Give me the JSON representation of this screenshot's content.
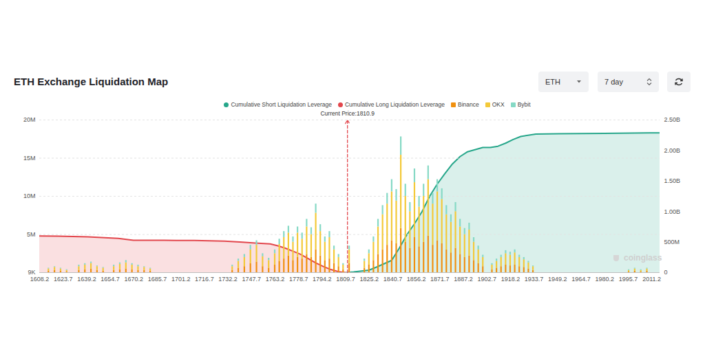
{
  "chart_data": {
    "type": "bar",
    "title": "ETH Exchange Liquidation Map",
    "stacked": true,
    "grid": true,
    "xlim": [
      1608.2,
      2016.6
    ],
    "xticks": [
      1608.2,
      1623.7,
      1639.2,
      1654.7,
      1670.2,
      1685.7,
      1701.2,
      1716.7,
      1732.2,
      1747.7,
      1763.2,
      1778.7,
      1794.2,
      1809.7,
      1825.2,
      1840.7,
      1856.2,
      1871.7,
      1887.2,
      1902.7,
      1918.2,
      1933.7,
      1949.2,
      1964.7,
      1980.2,
      1995.7,
      2011.2
    ],
    "ylim": [
      9000,
      20000000
    ],
    "yticks": [
      {
        "value": 9000,
        "label": "9K"
      },
      {
        "value": 5000000,
        "label": "5M"
      },
      {
        "value": 10000000,
        "label": "10M"
      },
      {
        "value": 15000000,
        "label": "15M"
      },
      {
        "value": 20000000,
        "label": "20M"
      }
    ],
    "y2lim": [
      0,
      2500000000
    ],
    "y2ticks": [
      0,
      {
        "value": 500000000,
        "label": "500M"
      },
      {
        "value": 1000000000,
        "label": "1.00B"
      },
      {
        "value": 1500000000,
        "label": "1.50B"
      },
      {
        "value": 2000000000,
        "label": "2.00B"
      },
      {
        "value": 2500000000,
        "label": "2.50B"
      }
    ],
    "x": [
      1614,
      1618,
      1622,
      1626,
      1634,
      1638,
      1642,
      1646,
      1650,
      1657,
      1661,
      1665,
      1669,
      1673,
      1677,
      1681,
      1735,
      1739,
      1743,
      1747,
      1751,
      1755,
      1759,
      1763,
      1766,
      1769,
      1772,
      1775,
      1778,
      1781,
      1784,
      1787,
      1790,
      1793,
      1796,
      1799,
      1802,
      1805,
      1808,
      1812,
      1822,
      1825,
      1828,
      1831,
      1834,
      1837,
      1840,
      1843,
      1846,
      1849,
      1852,
      1855,
      1858,
      1861,
      1864,
      1867,
      1870,
      1873,
      1876,
      1879,
      1882,
      1885,
      1888,
      1891,
      1894,
      1897,
      1900,
      1906,
      1909,
      1912,
      1915,
      1918,
      1921,
      1924,
      1927,
      1930,
      1933,
      1996,
      2000,
      2004,
      2008
    ],
    "series": [
      {
        "name": "Cumulative Short Liquidation Leverage",
        "color": "#26a68a",
        "type": "area",
        "axis": "y2",
        "x": [
          1810,
          1815,
          1825,
          1830,
          1840,
          1845,
          1850,
          1855,
          1860,
          1865,
          1870,
          1875,
          1880,
          1885,
          1890,
          1900,
          1905,
          1910,
          1915,
          1920,
          1925,
          1935,
          1950,
          1980,
          2010,
          2016.6
        ],
        "values": [
          0,
          10000000,
          40000000,
          90000000,
          200000000,
          400000000,
          620000000,
          800000000,
          1000000000,
          1250000000,
          1450000000,
          1620000000,
          1780000000,
          1900000000,
          1980000000,
          2050000000,
          2050000000,
          2070000000,
          2120000000,
          2180000000,
          2230000000,
          2270000000,
          2275000000,
          2280000000,
          2290000000,
          2290000000
        ]
      },
      {
        "name": "Cumulative Long Liquidation Leverage",
        "color": "#e2464c",
        "type": "area",
        "axis": "y2",
        "x": [
          1608.2,
          1620,
          1640,
          1660,
          1670,
          1690,
          1710,
          1730,
          1740,
          1750,
          1760,
          1765,
          1770,
          1775,
          1780,
          1785,
          1790,
          1795,
          1800,
          1805,
          1809.7
        ],
        "values": [
          600000000,
          598000000,
          585000000,
          560000000,
          530000000,
          528000000,
          526000000,
          515000000,
          500000000,
          485000000,
          470000000,
          440000000,
          400000000,
          350000000,
          300000000,
          230000000,
          160000000,
          100000000,
          50000000,
          15000000,
          0
        ]
      },
      {
        "name": "Binance",
        "color": "#f0900f",
        "values": [
          200000,
          300000,
          200000,
          100000,
          300000,
          400000,
          500000,
          300000,
          200000,
          300000,
          400000,
          500000,
          400000,
          300000,
          300000,
          200000,
          300000,
          600000,
          800000,
          1200000,
          1400000,
          800000,
          600000,
          1000000,
          1500000,
          1800000,
          2200000,
          1600000,
          2000000,
          1800000,
          2400000,
          2000000,
          3000000,
          2200000,
          1600000,
          1800000,
          1200000,
          800000,
          400000,
          1200000,
          600000,
          1000000,
          1600000,
          2400000,
          3000000,
          3600000,
          4200000,
          3800000,
          5800000,
          4000000,
          3200000,
          4600000,
          3400000,
          4000000,
          4800000,
          3600000,
          4200000,
          3800000,
          3000000,
          2600000,
          3200000,
          2400000,
          2000000,
          2200000,
          1600000,
          1200000,
          800000,
          400000,
          600000,
          800000,
          1000000,
          900000,
          1000000,
          800000,
          700000,
          500000,
          300000,
          100000,
          200000,
          100000,
          200000
        ]
      },
      {
        "name": "OKX",
        "color": "#f3c939",
        "values": [
          300000,
          400000,
          300000,
          200000,
          500000,
          600000,
          700000,
          500000,
          400000,
          500000,
          700000,
          800000,
          600000,
          500000,
          400000,
          300000,
          500000,
          900000,
          1200000,
          1800000,
          2200000,
          1300000,
          1000000,
          1500000,
          2200000,
          2800000,
          3000000,
          2400000,
          3200000,
          2600000,
          3600000,
          3000000,
          4800000,
          3200000,
          2400000,
          2800000,
          1800000,
          1200000,
          600000,
          1800000,
          900000,
          1500000,
          2400000,
          3600000,
          4600000,
          5400000,
          6400000,
          5600000,
          9600000,
          6000000,
          4800000,
          7200000,
          5200000,
          6000000,
          7400000,
          5400000,
          6400000,
          5800000,
          4600000,
          4000000,
          4800000,
          3600000,
          3000000,
          3400000,
          2400000,
          1800000,
          1200000,
          600000,
          900000,
          1200000,
          1500000,
          1400000,
          1600000,
          1200000,
          1000000,
          800000,
          500000,
          200000,
          300000,
          200000,
          300000
        ]
      },
      {
        "name": "Bybit",
        "color": "#86d9c5",
        "values": [
          100000,
          100000,
          100000,
          100000,
          200000,
          200000,
          200000,
          100000,
          100000,
          200000,
          200000,
          300000,
          200000,
          200000,
          100000,
          100000,
          200000,
          300000,
          400000,
          600000,
          600000,
          400000,
          300000,
          500000,
          700000,
          800000,
          900000,
          700000,
          800000,
          800000,
          1000000,
          900000,
          1200000,
          900000,
          700000,
          800000,
          500000,
          400000,
          200000,
          500000,
          300000,
          500000,
          700000,
          1000000,
          1200000,
          1400000,
          1600000,
          1500000,
          2400000,
          1600000,
          1200000,
          1800000,
          1400000,
          1600000,
          1800000,
          1400000,
          1600000,
          1400000,
          1200000,
          1000000,
          1200000,
          1000000,
          800000,
          900000,
          600000,
          500000,
          300000,
          200000,
          300000,
          300000,
          400000,
          400000,
          400000,
          300000,
          300000,
          200000,
          100000,
          100000,
          100000,
          100000,
          100000
        ]
      }
    ],
    "annotations": [
      {
        "text": "Current Price:1810.9",
        "x": 1810.9
      }
    ]
  },
  "controls": {
    "asset": "ETH",
    "period": "7 day"
  },
  "watermark": "coinglass"
}
